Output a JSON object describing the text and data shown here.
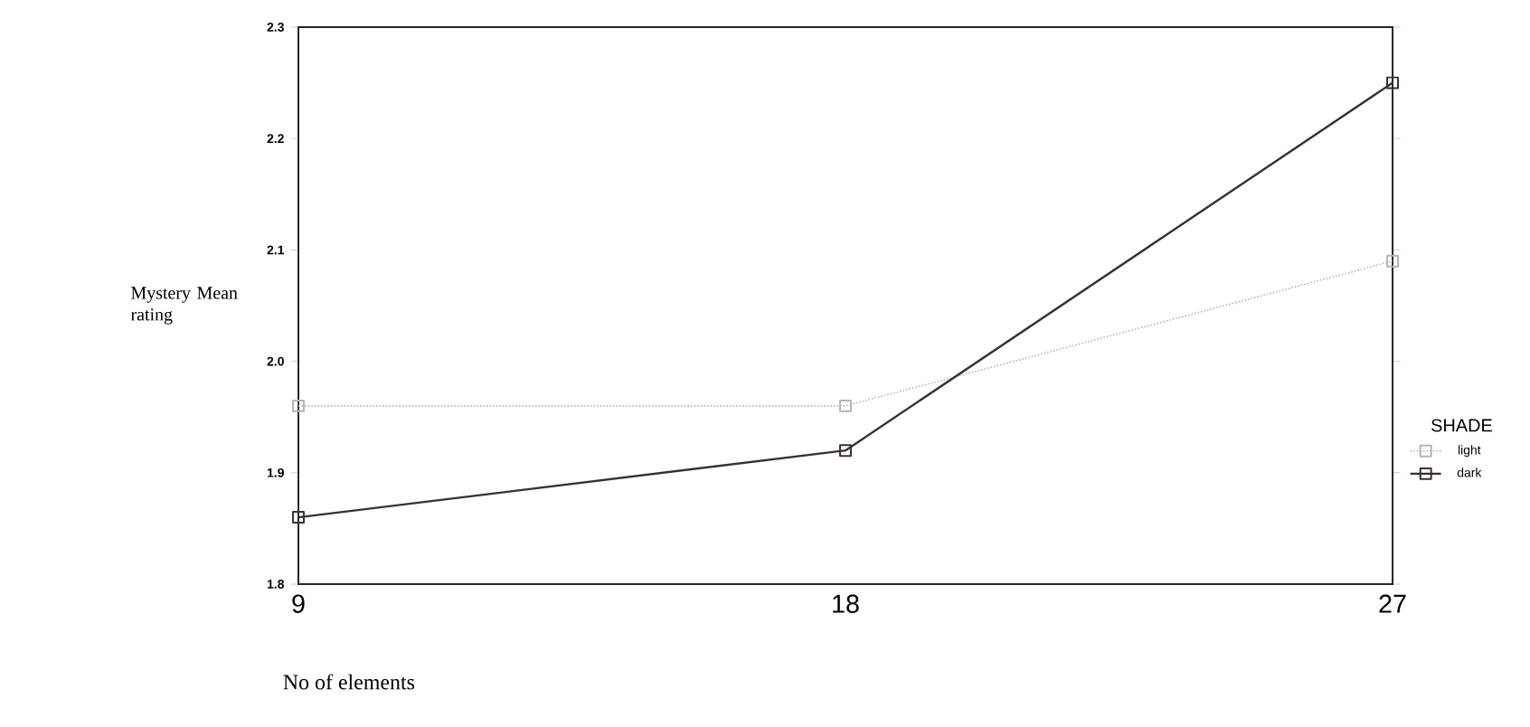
{
  "chart_data": {
    "type": "line",
    "xlabel": "No of elements",
    "ylabel": "Mystery Mean rating",
    "legend_title": "SHADE",
    "x": [
      9,
      18,
      27
    ],
    "xlim": [
      9,
      27
    ],
    "xticks": [
      9,
      18,
      27
    ],
    "ylim": [
      1.8,
      2.3
    ],
    "yticks": [
      1.8,
      1.9,
      {
        "value": 2.0,
        "label": "2.0"
      },
      2.1,
      2.2,
      2.3
    ],
    "series": [
      {
        "name": "light",
        "color": "#b4b4b4",
        "line_style": "dotted",
        "values": [
          1.96,
          1.96,
          2.09
        ]
      },
      {
        "name": "dark",
        "color": "#3a3030",
        "line_style": "solid",
        "values": [
          1.86,
          1.92,
          2.25
        ]
      }
    ],
    "marker": "square",
    "legend": "right",
    "grid": false
  }
}
